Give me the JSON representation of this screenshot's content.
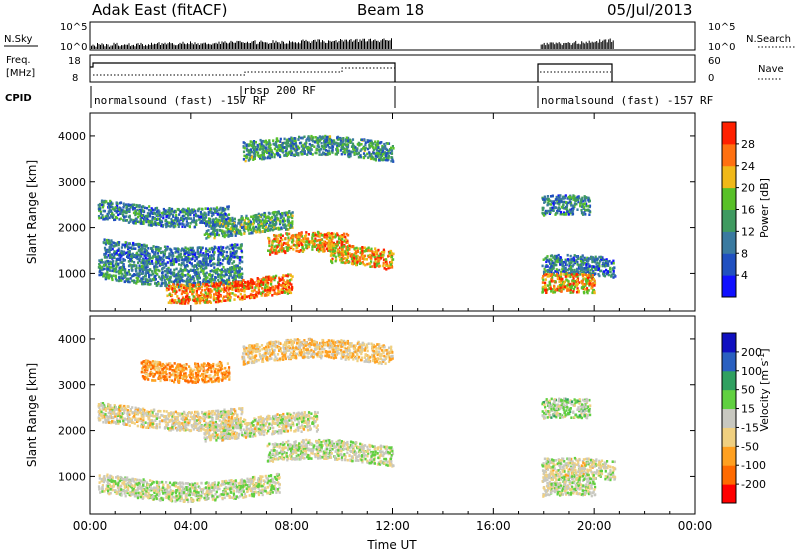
{
  "header": {
    "station": "Adak East (fitACF)",
    "beam": "Beam 18",
    "date": "05/Jul/2013"
  },
  "top_panels": {
    "nsky_label": "N.Sky",
    "nsky_ticks": [
      "10^5",
      "10^0"
    ],
    "nsearch_label": "N.Search",
    "nsearch_ticks": [
      "10^5",
      "10^0"
    ],
    "freq_label_1": "Freq.",
    "freq_label_2": "[MHz]",
    "freq_ticks": [
      "18",
      "8"
    ],
    "nave_label": "Nave",
    "nave_ticks": [
      "60",
      "0"
    ],
    "cpid_label": "CPID",
    "cpid_segments": [
      {
        "label": "normalsound (fast) -157 RF",
        "start": 0.0,
        "end": 6.5
      },
      {
        "label": "rbsp 200 RF",
        "start": 6.0,
        "end": 12.0
      },
      {
        "label": "normalsound (fast) -157 RF",
        "start": 17.9,
        "end": 20.8
      }
    ]
  },
  "chart_data": [
    {
      "type": "heatmap",
      "title": "",
      "xlabel": "",
      "ylabel": "Slant Range [km]",
      "x_ticks": [
        "00:00",
        "04:00",
        "08:00",
        "12:00",
        "16:00",
        "20:00",
        "00:00"
      ],
      "y_ticks": [
        "1000",
        "2000",
        "3000",
        "4000"
      ],
      "xlim": [
        0,
        24
      ],
      "ylim": [
        180,
        4500
      ],
      "colorbar": {
        "label": "Power [dB]",
        "ticks": [
          "4",
          "8",
          "12",
          "16",
          "20",
          "24",
          "28"
        ],
        "range": [
          0,
          30
        ],
        "colors": [
          "#1010ff",
          "#2050c0",
          "#3a7aa0",
          "#3f9a60",
          "#58c028",
          "#f0b818",
          "#ff7010",
          "#ff2000"
        ]
      },
      "data_windows": [
        {
          "start": 0.0,
          "end": 12.0
        },
        {
          "start": 17.9,
          "end": 20.8
        }
      ],
      "features": [
        {
          "t0": 0.3,
          "t1": 5.5,
          "r": 2350,
          "value": 10
        },
        {
          "t0": 4.5,
          "t1": 8.0,
          "r": 2100,
          "value": 13
        },
        {
          "t0": 7.0,
          "t1": 10.2,
          "r": 1600,
          "value": 22
        },
        {
          "t0": 9.5,
          "t1": 12.0,
          "r": 1350,
          "value": 22
        },
        {
          "t0": 0.3,
          "t1": 6.0,
          "r": 1050,
          "value": 11
        },
        {
          "t0": 3.0,
          "t1": 8.0,
          "r": 700,
          "value": 24
        },
        {
          "t0": 0.5,
          "t1": 6.0,
          "r": 1500,
          "value": 9
        },
        {
          "t0": 6.0,
          "t1": 12.0,
          "r": 3700,
          "value": 12
        },
        {
          "t0": 17.9,
          "t1": 19.8,
          "r": 2400,
          "value": 10
        },
        {
          "t0": 17.9,
          "t1": 20.8,
          "r": 1100,
          "value": 9
        },
        {
          "t0": 17.9,
          "t1": 20.0,
          "r": 700,
          "value": 22
        }
      ]
    },
    {
      "type": "heatmap",
      "title": "",
      "xlabel": "Time UT",
      "ylabel": "Slant Range [km]",
      "x_ticks": [
        "00:00",
        "04:00",
        "08:00",
        "12:00",
        "16:00",
        "20:00",
        "00:00"
      ],
      "y_ticks": [
        "1000",
        "2000",
        "3000",
        "4000"
      ],
      "xlim": [
        0,
        24
      ],
      "ylim": [
        180,
        4500
      ],
      "colorbar": {
        "label": "Velocity [m s",
        "label_sup": "-1",
        "label_close": "]",
        "ticks": [
          "200",
          "100",
          "50",
          "15",
          "-15",
          "-50",
          "-100",
          "-200"
        ],
        "range": [
          -250,
          250
        ],
        "colors": [
          "#ff0000",
          "#ff6a00",
          "#ffa020",
          "#f0d080",
          "#c8c8c0",
          "#60d040",
          "#30a060",
          "#2a60c0",
          "#1010c0"
        ]
      },
      "features": [
        {
          "t0": 0.3,
          "t1": 6.0,
          "r": 2350,
          "value": -30
        },
        {
          "t0": 4.5,
          "t1": 9.0,
          "r": 2100,
          "value": -20
        },
        {
          "t0": 7.0,
          "t1": 12.0,
          "r": 1500,
          "value": 0
        },
        {
          "t0": 0.3,
          "t1": 7.5,
          "r": 800,
          "value": 0
        },
        {
          "t0": 6.0,
          "t1": 12.0,
          "r": 3700,
          "value": -60
        },
        {
          "t0": 2.0,
          "t1": 5.5,
          "r": 3400,
          "value": -120
        },
        {
          "t0": 17.9,
          "t1": 20.8,
          "r": 1100,
          "value": -20
        },
        {
          "t0": 17.9,
          "t1": 20.0,
          "r": 700,
          "value": 0
        },
        {
          "t0": 17.9,
          "t1": 19.8,
          "r": 2400,
          "value": 20
        }
      ]
    }
  ]
}
